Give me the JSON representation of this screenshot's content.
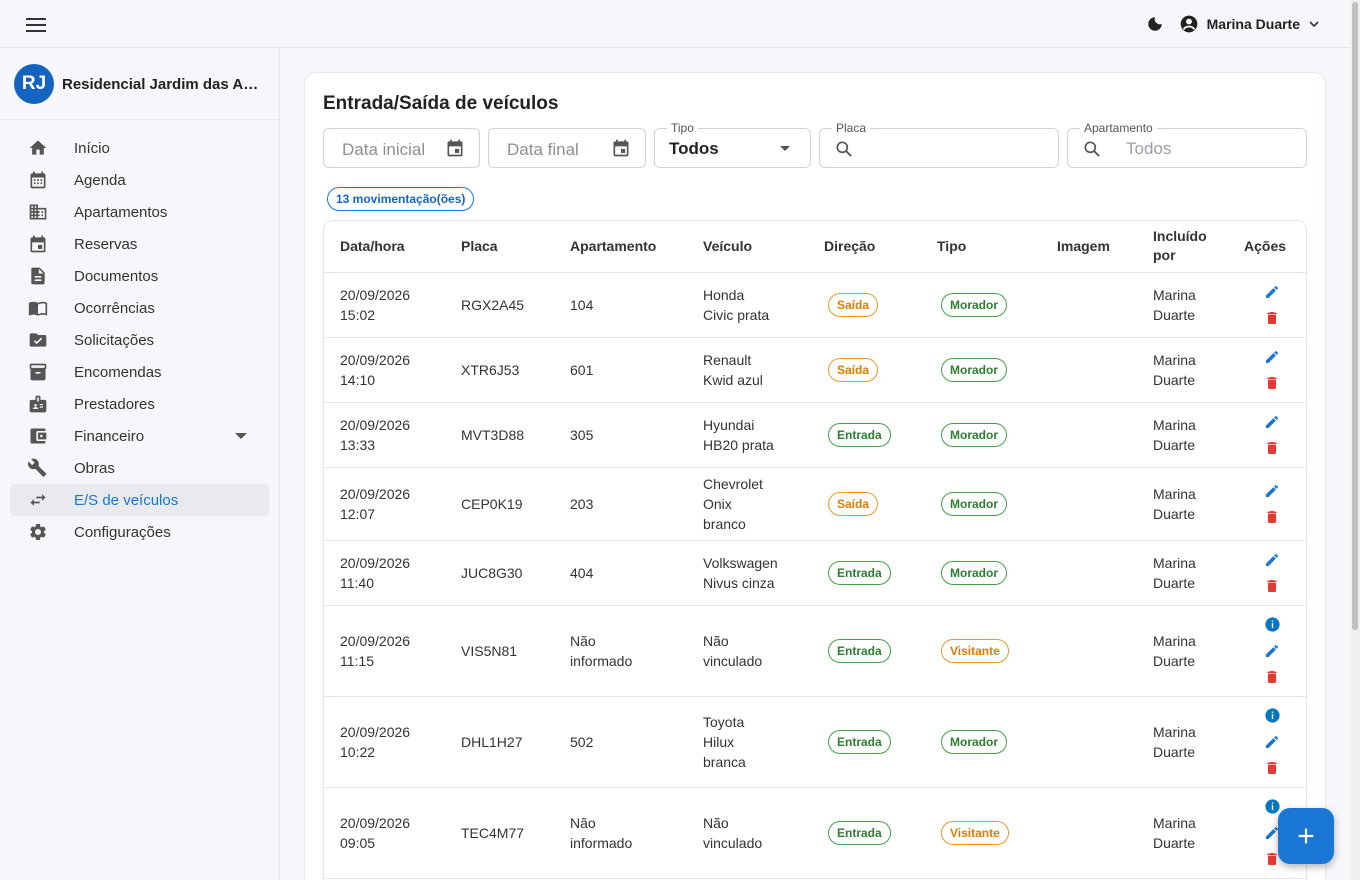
{
  "header": {
    "user_name": "Marina Duarte",
    "icons": [
      "menu-icon",
      "moon-icon",
      "account-circle-icon",
      "chevron-down-icon"
    ]
  },
  "sidebar": {
    "org_initials": "RJ",
    "org_name": "Residencial Jardim das Acácias",
    "items": [
      {
        "label": "Início",
        "icon": "home-icon"
      },
      {
        "label": "Agenda",
        "icon": "calendar-icon"
      },
      {
        "label": "Apartamentos",
        "icon": "building-icon"
      },
      {
        "label": "Reservas",
        "icon": "event-icon"
      },
      {
        "label": "Documentos",
        "icon": "document-icon"
      },
      {
        "label": "Ocorrências",
        "icon": "book-icon"
      },
      {
        "label": "Solicitações",
        "icon": "folder-check-icon"
      },
      {
        "label": "Encomendas",
        "icon": "package-icon"
      },
      {
        "label": "Prestadores",
        "icon": "badge-icon"
      },
      {
        "label": "Financeiro",
        "icon": "wallet-icon"
      },
      {
        "label": "Obras",
        "icon": "tools-icon"
      },
      {
        "label": "E/S de veículos",
        "icon": "swap-icon"
      },
      {
        "label": "Configurações",
        "icon": "gear-icon"
      }
    ]
  },
  "main": {
    "title": "Entrada/Saída de veículos",
    "filters": {
      "start_date_placeholder": "Data inicial",
      "end_date_placeholder": "Data final",
      "type_label": "Tipo",
      "type_value": "Todos",
      "plate_label": "Placa",
      "plate_value": "",
      "apartment_label": "Apartamento",
      "apartment_placeholder": "Todos"
    },
    "count_chip": "13 movimentação(ões)",
    "table": {
      "headers": [
        "Data/hora",
        "Placa",
        "Apartamento",
        "Veículo",
        "Direção",
        "Tipo",
        "Imagem",
        "Incluído por",
        "Ações"
      ],
      "rows": [
        {
          "date": "20/09/2026",
          "time": "15:02",
          "plate": "RGX2A45",
          "apt": "104",
          "vehicle": [
            "Honda",
            "Civic prata"
          ],
          "direction": "Saída",
          "type": "Morador",
          "by": [
            "Marina",
            "Duarte"
          ],
          "info": false
        },
        {
          "date": "20/09/2026",
          "time": "14:10",
          "plate": "XTR6J53",
          "apt": "601",
          "vehicle": [
            "Renault",
            "Kwid azul"
          ],
          "direction": "Saída",
          "type": "Morador",
          "by": [
            "Marina",
            "Duarte"
          ],
          "info": false
        },
        {
          "date": "20/09/2026",
          "time": "13:33",
          "plate": "MVT3D88",
          "apt": "305",
          "vehicle": [
            "Hyundai",
            "HB20 prata"
          ],
          "direction": "Entrada",
          "type": "Morador",
          "by": [
            "Marina",
            "Duarte"
          ],
          "info": false
        },
        {
          "date": "20/09/2026",
          "time": "12:07",
          "plate": "CEP0K19",
          "apt": "203",
          "vehicle": [
            "Chevrolet",
            "Onix",
            "branco"
          ],
          "direction": "Saída",
          "type": "Morador",
          "by": [
            "Marina",
            "Duarte"
          ],
          "info": false
        },
        {
          "date": "20/09/2026",
          "time": "11:40",
          "plate": "JUC8G30",
          "apt": "404",
          "vehicle": [
            "Volkswagen",
            "Nivus cinza"
          ],
          "direction": "Entrada",
          "type": "Morador",
          "by": [
            "Marina",
            "Duarte"
          ],
          "info": false
        },
        {
          "date": "20/09/2026",
          "time": "11:15",
          "plate": "VIS5N81",
          "apt": [
            "Não",
            "informado"
          ],
          "vehicle": [
            "Não",
            "vinculado"
          ],
          "direction": "Entrada",
          "type": "Visitante",
          "by": [
            "Marina",
            "Duarte"
          ],
          "info": true
        },
        {
          "date": "20/09/2026",
          "time": "10:22",
          "plate": "DHL1H27",
          "apt": "502",
          "vehicle": [
            "Toyota",
            "Hilux",
            "branca"
          ],
          "direction": "Entrada",
          "type": "Morador",
          "by": [
            "Marina",
            "Duarte"
          ],
          "info": true
        },
        {
          "date": "20/09/2026",
          "time": "09:05",
          "plate": "TEC4M77",
          "apt": [
            "Não",
            "informado"
          ],
          "vehicle": [
            "Não",
            "vinculado"
          ],
          "direction": "Entrada",
          "type": "Visitante",
          "by": [
            "Marina",
            "Duarte"
          ],
          "info": true
        }
      ]
    }
  },
  "colors": {
    "primary": "#1976d2",
    "danger": "#e53935",
    "success": "#2e7d32",
    "warning": "#e07b00",
    "info": "#0277bd"
  },
  "fab_icon": "plus-icon"
}
